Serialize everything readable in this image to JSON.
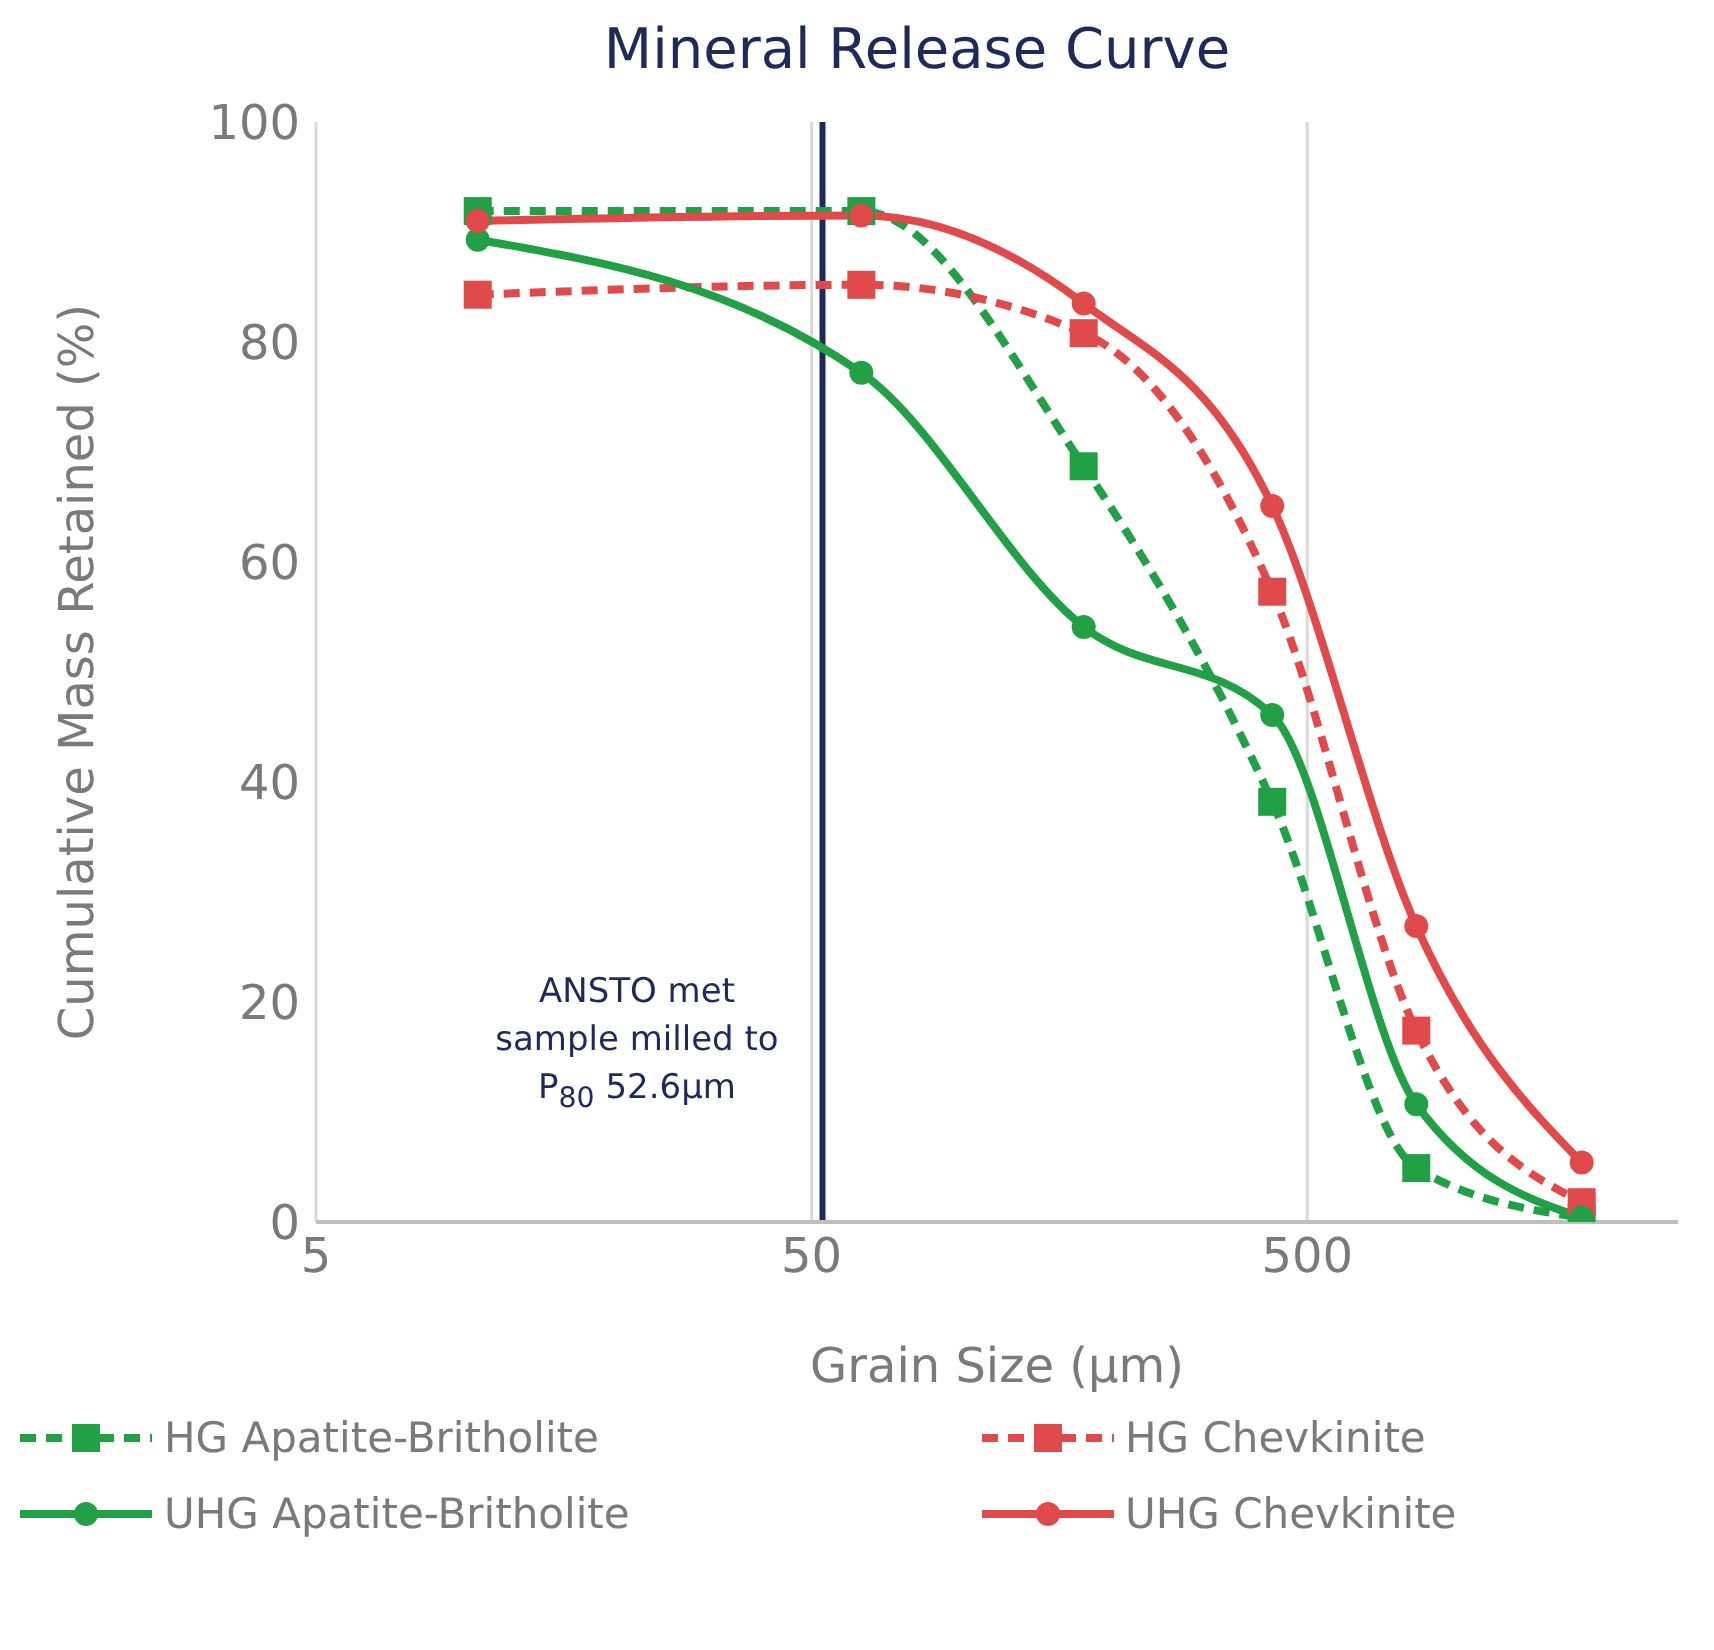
{
  "chart_data": {
    "type": "line",
    "title": "Mineral Release Curve",
    "xlabel": "Grain Size (µm)",
    "ylabel": "Cumulative Mass Retained (%)",
    "log": "x",
    "xlim": [
      5,
      2800
    ],
    "xticks": [
      5,
      50,
      500
    ],
    "ylim": [
      0,
      100
    ],
    "yticks": [
      0,
      20,
      40,
      60,
      80,
      100
    ],
    "grid": "x",
    "legend": "bottom",
    "x": [
      10.6,
      63,
      177,
      425,
      830,
      1790
    ],
    "series": [
      {
        "name": "HG Apatite-Britholite",
        "color": "#22a046",
        "line_style": "dashed",
        "marker": "square",
        "values": [
          91.9,
          91.9,
          68.7,
          38.2,
          4.9,
          0.4
        ]
      },
      {
        "name": "HG Chevkinite",
        "color": "#e04a4a",
        "line_style": "dashed",
        "marker": "square",
        "values": [
          84.3,
          85.2,
          80.8,
          57.3,
          17.4,
          1.8
        ]
      },
      {
        "name": "UHG Apatite-Britholite",
        "color": "#22a046",
        "line_style": "solid",
        "marker": "circle",
        "values": [
          89.3,
          77.2,
          54.1,
          46.1,
          10.7,
          0.4
        ]
      },
      {
        "name": "UHG Chevkinite",
        "color": "#e04a4a",
        "line_style": "solid",
        "marker": "circle",
        "values": [
          91,
          91.5,
          83.5,
          65.1,
          26.9,
          5.4
        ]
      }
    ],
    "ref_lines": [
      {
        "axis": "x",
        "value": 52.6,
        "color": "#1f2a5a",
        "line_style": "solid"
      }
    ],
    "annotations": [
      "ANSTO met sample milled to P$_{80}$ 52.6µm"
    ]
  }
}
